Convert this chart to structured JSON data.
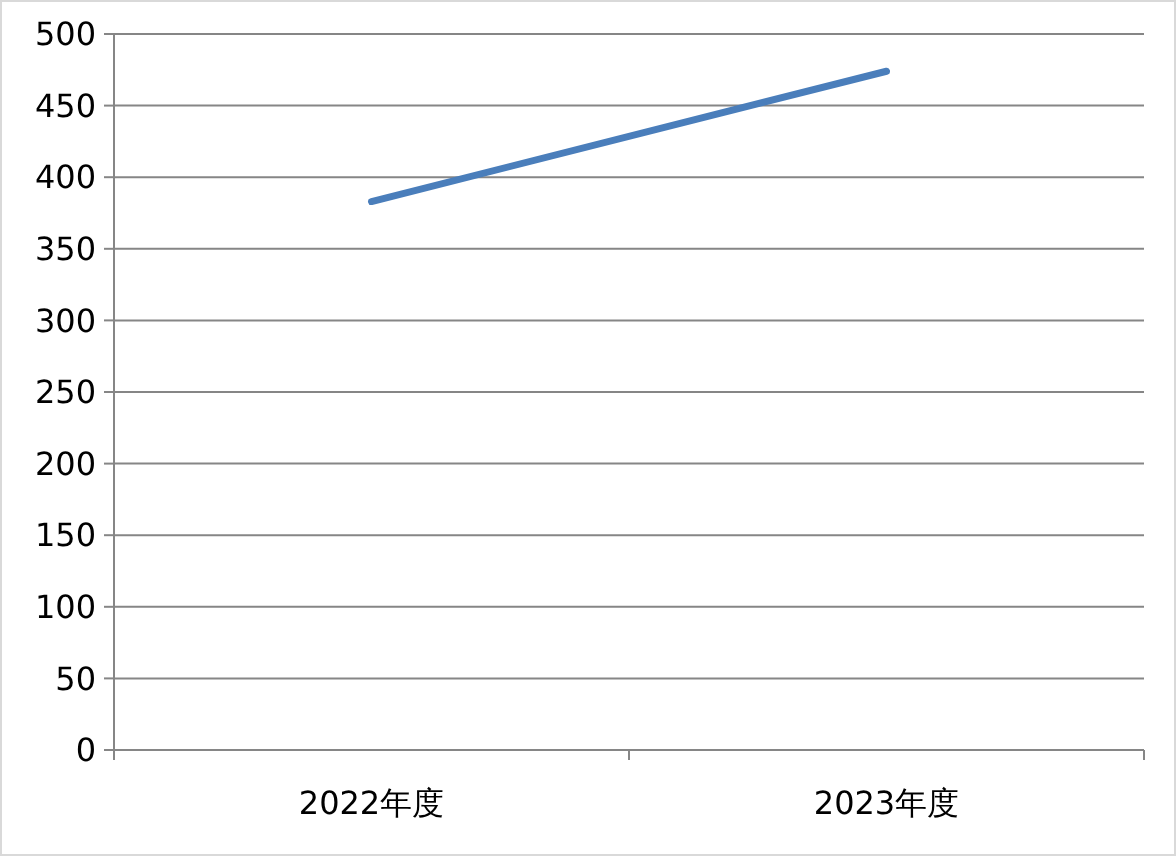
{
  "chart_data": {
    "type": "line",
    "categories": [
      "2022年度",
      "2023年度"
    ],
    "series": [
      {
        "color": "#4a7ebb",
        "values": [
          383,
          474
        ]
      }
    ],
    "ylim": [
      0,
      500
    ],
    "yticks": [
      0,
      50,
      100,
      150,
      200,
      250,
      300,
      350,
      400,
      450,
      500
    ],
    "grid": "y",
    "marker": "none",
    "line_style": "solid"
  }
}
